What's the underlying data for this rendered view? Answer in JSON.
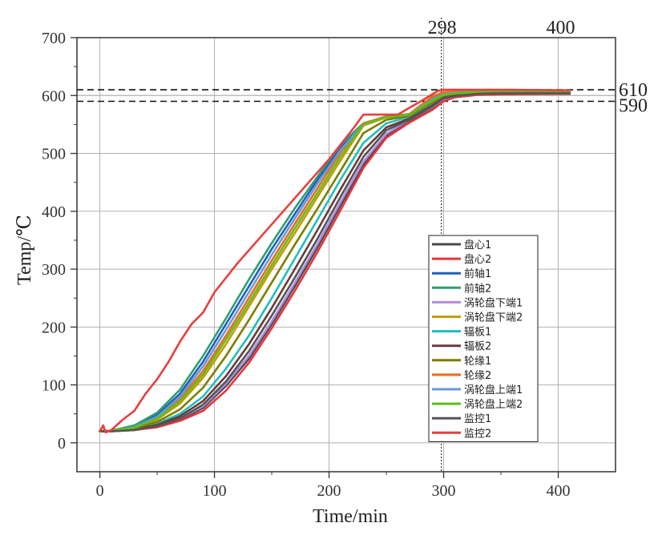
{
  "chart_data": {
    "type": "line",
    "xlabel": "Time/min",
    "ylabel": "Temp/℃",
    "xlim": [
      -20,
      450
    ],
    "ylim": [
      -50,
      700
    ],
    "xticks": [
      0,
      100,
      200,
      300,
      400
    ],
    "yticks": [
      0,
      100,
      200,
      300,
      400,
      500,
      600,
      700
    ],
    "grid": true,
    "legend_position": "bottom-right",
    "reference_lines": {
      "horizontal": [
        {
          "value": 610,
          "label": "610",
          "style": "dashed"
        },
        {
          "value": 590,
          "label": "590",
          "style": "dashed"
        },
        {
          "value": 600,
          "label": "",
          "style": "solid"
        }
      ],
      "vertical": [
        {
          "value": 298,
          "label": "298",
          "style": "dotted"
        }
      ],
      "top_labels": [
        {
          "value": 298,
          "label": "298"
        },
        {
          "value": 400,
          "label": "400"
        }
      ]
    },
    "series": [
      {
        "name": "盘心1",
        "color": "#4a4a4a",
        "x": [
          0,
          10,
          30,
          50,
          70,
          90,
          110,
          130,
          150,
          170,
          190,
          210,
          230,
          250,
          270,
          290,
          300,
          310,
          330,
          350,
          410
        ],
        "y": [
          20,
          20,
          22,
          28,
          40,
          60,
          98,
          145,
          205,
          270,
          338,
          410,
          480,
          530,
          556,
          578,
          592,
          598,
          602,
          603,
          603
        ]
      },
      {
        "name": "盘心2",
        "color": "#e8343a",
        "x": [
          0,
          10,
          30,
          50,
          70,
          90,
          110,
          130,
          150,
          170,
          190,
          210,
          230,
          250,
          270,
          290,
          300,
          310,
          330,
          350,
          410
        ],
        "y": [
          20,
          20,
          22,
          27,
          38,
          55,
          90,
          138,
          198,
          262,
          330,
          402,
          475,
          527,
          553,
          575,
          590,
          597,
          601,
          602,
          603
        ]
      },
      {
        "name": "前轴1",
        "color": "#1f5fbf",
        "x": [
          0,
          10,
          30,
          50,
          70,
          90,
          110,
          130,
          150,
          170,
          190,
          210,
          230,
          250,
          270,
          290,
          300,
          310,
          330,
          350,
          410
        ],
        "y": [
          20,
          21,
          28,
          48,
          85,
          140,
          205,
          270,
          335,
          395,
          455,
          510,
          550,
          563,
          567,
          592,
          602,
          605,
          606,
          606,
          606
        ]
      },
      {
        "name": "前轴2",
        "color": "#2e9e6e",
        "x": [
          0,
          10,
          30,
          50,
          70,
          90,
          110,
          130,
          150,
          170,
          190,
          210,
          230,
          250,
          270,
          290,
          300,
          310,
          330,
          350,
          410
        ],
        "y": [
          20,
          21,
          30,
          52,
          92,
          150,
          215,
          282,
          345,
          405,
          460,
          515,
          552,
          563,
          568,
          594,
          603,
          605,
          606,
          606,
          606
        ]
      },
      {
        "name": "涡轮盘下端1",
        "color": "#b38ce0",
        "x": [
          0,
          10,
          30,
          50,
          70,
          90,
          110,
          130,
          150,
          170,
          190,
          210,
          230,
          250,
          270,
          290,
          300,
          310,
          330,
          350,
          410
        ],
        "y": [
          20,
          20,
          23,
          30,
          42,
          63,
          102,
          150,
          210,
          276,
          344,
          416,
          486,
          534,
          558,
          580,
          594,
          599,
          603,
          604,
          604
        ]
      },
      {
        "name": "涡轮盘下端2",
        "color": "#c99a00",
        "x": [
          0,
          10,
          30,
          50,
          70,
          90,
          110,
          130,
          150,
          170,
          190,
          210,
          230,
          250,
          270,
          290,
          300,
          310,
          330,
          350,
          410
        ],
        "y": [
          20,
          21,
          26,
          40,
          68,
          112,
          170,
          235,
          300,
          362,
          425,
          488,
          548,
          562,
          566,
          590,
          601,
          604,
          606,
          606,
          606
        ]
      },
      {
        "name": "辐板1",
        "color": "#1fbfbf",
        "x": [
          0,
          10,
          30,
          50,
          70,
          90,
          110,
          130,
          150,
          170,
          190,
          210,
          230,
          250,
          270,
          290,
          300,
          310,
          330,
          350,
          410
        ],
        "y": [
          20,
          20,
          24,
          33,
          50,
          80,
          128,
          185,
          250,
          318,
          386,
          455,
          518,
          552,
          563,
          586,
          598,
          602,
          604,
          605,
          605
        ]
      },
      {
        "name": "辐板2",
        "color": "#6b3a3a",
        "x": [
          0,
          10,
          30,
          50,
          70,
          90,
          110,
          130,
          150,
          170,
          190,
          210,
          230,
          250,
          270,
          290,
          300,
          310,
          330,
          350,
          410
        ],
        "y": [
          20,
          20,
          23,
          31,
          46,
          72,
          115,
          170,
          233,
          300,
          368,
          438,
          505,
          545,
          560,
          583,
          596,
          600,
          603,
          604,
          604
        ]
      },
      {
        "name": "轮缘1",
        "color": "#7d7d00",
        "x": [
          0,
          10,
          30,
          50,
          70,
          90,
          110,
          130,
          150,
          170,
          190,
          210,
          230,
          250,
          270,
          290,
          300,
          310,
          330,
          350,
          410
        ],
        "y": [
          20,
          21,
          25,
          36,
          58,
          95,
          150,
          212,
          277,
          342,
          405,
          470,
          535,
          558,
          565,
          588,
          600,
          603,
          605,
          605,
          605
        ]
      },
      {
        "name": "轮缘2",
        "color": "#ee6a1a",
        "x": [
          0,
          10,
          30,
          50,
          70,
          90,
          110,
          130,
          150,
          170,
          190,
          210,
          230,
          250,
          270,
          290,
          300,
          310,
          330,
          350,
          410
        ],
        "y": [
          20,
          21,
          27,
          44,
          76,
          124,
          185,
          250,
          315,
          378,
          440,
          502,
          552,
          564,
          568,
          598,
          606,
          607,
          607,
          607,
          607
        ]
      },
      {
        "name": "涡轮盘上端1",
        "color": "#6a9ad9",
        "x": [
          0,
          10,
          30,
          50,
          70,
          90,
          110,
          130,
          150,
          170,
          190,
          210,
          230,
          250,
          270,
          290,
          300,
          310,
          330,
          350,
          410
        ],
        "y": [
          20,
          21,
          27,
          45,
          80,
          132,
          195,
          260,
          325,
          387,
          448,
          506,
          550,
          563,
          567,
          593,
          602,
          605,
          606,
          606,
          606
        ]
      },
      {
        "name": "涡轮盘上端2",
        "color": "#5fbf1f",
        "x": [
          0,
          10,
          30,
          50,
          70,
          90,
          110,
          130,
          150,
          170,
          190,
          210,
          230,
          250,
          270,
          290,
          300,
          310,
          330,
          350,
          410
        ],
        "y": [
          20,
          21,
          26,
          42,
          72,
          118,
          178,
          242,
          307,
          370,
          432,
          495,
          550,
          563,
          567,
          591,
          601,
          604,
          606,
          606,
          606
        ]
      },
      {
        "name": "监控1",
        "color": "#555555",
        "x": [
          0,
          10,
          30,
          50,
          70,
          90,
          110,
          130,
          150,
          170,
          190,
          210,
          230,
          250,
          270,
          290,
          300,
          310,
          330,
          350,
          410
        ],
        "y": [
          20,
          20,
          22,
          29,
          42,
          66,
          106,
          158,
          220,
          285,
          353,
          425,
          494,
          540,
          558,
          581,
          595,
          599,
          603,
          604,
          604
        ]
      },
      {
        "name": "监控2",
        "color": "#e83e3e",
        "x": [
          0,
          3,
          5,
          10,
          20,
          30,
          40,
          50,
          60,
          70,
          80,
          90,
          100,
          120,
          140,
          160,
          180,
          200,
          220,
          230,
          260,
          280,
          295,
          300,
          320,
          350,
          410
        ],
        "y": [
          20,
          30,
          18,
          22,
          40,
          55,
          85,
          110,
          140,
          175,
          205,
          225,
          260,
          310,
          355,
          400,
          445,
          490,
          540,
          567,
          567,
          590,
          608,
          610,
          610,
          610,
          609
        ]
      }
    ]
  }
}
